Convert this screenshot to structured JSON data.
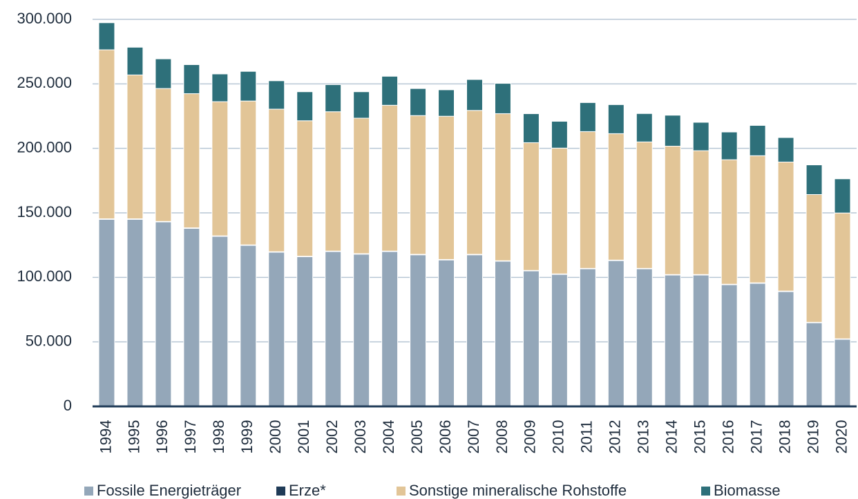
{
  "chart_data": {
    "type": "stacked-bar",
    "categories": [
      "1994",
      "1995",
      "1996",
      "1997",
      "1998",
      "1999",
      "2000",
      "2001",
      "2002",
      "2003",
      "2004",
      "2005",
      "2006",
      "2007",
      "2008",
      "2009",
      "2010",
      "2011",
      "2012",
      "2013",
      "2014",
      "2015",
      "2016",
      "2017",
      "2018",
      "2019",
      "2020"
    ],
    "series": [
      {
        "name": "Fossile Energieträger",
        "color": "#94a7b9",
        "values": [
          145000,
          145000,
          143000,
          138000,
          131800,
          124800,
          119500,
          116000,
          120000,
          118000,
          120000,
          117500,
          113500,
          117500,
          112500,
          105000,
          102300,
          106600,
          113000,
          106600,
          101800,
          101800,
          94300,
          95400,
          89000,
          64800,
          52000
        ]
      },
      {
        "name": "Erze*",
        "color": "#1f3b57",
        "values": [
          400,
          400,
          400,
          400,
          400,
          400,
          400,
          400,
          400,
          400,
          400,
          400,
          400,
          400,
          400,
          400,
          400,
          400,
          400,
          400,
          400,
          400,
          400,
          400,
          400,
          400,
          400
        ]
      },
      {
        "name": "Sonstige mineralische Rohstoffe",
        "color": "#e2c597",
        "values": [
          131000,
          111500,
          103000,
          104000,
          104000,
          111500,
          110500,
          105000,
          108000,
          105000,
          113000,
          107500,
          111000,
          111500,
          114000,
          99000,
          97500,
          106000,
          98000,
          98000,
          99500,
          96000,
          96500,
          98500,
          100000,
          99000,
          97500
        ]
      },
      {
        "name": "Biomasse",
        "color": "#2e707a",
        "values": [
          21000,
          21500,
          23000,
          22500,
          21500,
          23000,
          22000,
          22500,
          21000,
          20500,
          22500,
          21000,
          20500,
          24000,
          23500,
          22500,
          20800,
          22500,
          22500,
          22000,
          24000,
          22000,
          21500,
          23500,
          19000,
          23000,
          26500
        ]
      }
    ],
    "ylim": [
      0,
      300000
    ],
    "yticks": [
      0,
      {
        "value": 50000,
        "label": "50.000"
      },
      {
        "value": 100000,
        "label": "100.000"
      },
      {
        "value": 150000,
        "label": "150.000"
      },
      {
        "value": 200000,
        "label": "200.000"
      },
      {
        "value": 250000,
        "label": "250.000"
      },
      {
        "value": 300000,
        "label": "300.000"
      }
    ],
    "grid": true,
    "legend": "bottom"
  }
}
